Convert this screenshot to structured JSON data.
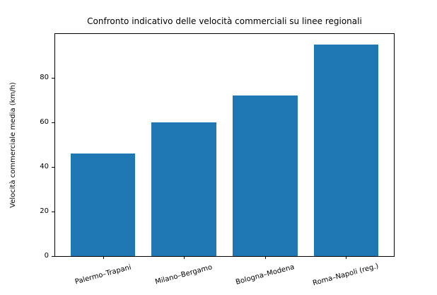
{
  "figure": {
    "background": "#ffffff"
  },
  "chart_data": {
    "type": "bar",
    "title": "Confronto indicativo delle velocità commerciali su linee regionali",
    "categories": [
      "Palermo–Trapani",
      "Milano–Bergamo",
      "Bologna–Modena",
      "Roma–Napoli (reg.)"
    ],
    "values": [
      46,
      60,
      72,
      95
    ],
    "xlabel": "",
    "ylabel": "Velocità commerciale media (km/h)",
    "ylim": [
      0,
      100
    ],
    "yticks": [
      0,
      20,
      40,
      60,
      80
    ],
    "bar_color": "#1f77b4",
    "axis_color": "#000000",
    "text_color": "#000000",
    "grid": false,
    "legend": "none",
    "xtick_rotation_deg": 15
  }
}
